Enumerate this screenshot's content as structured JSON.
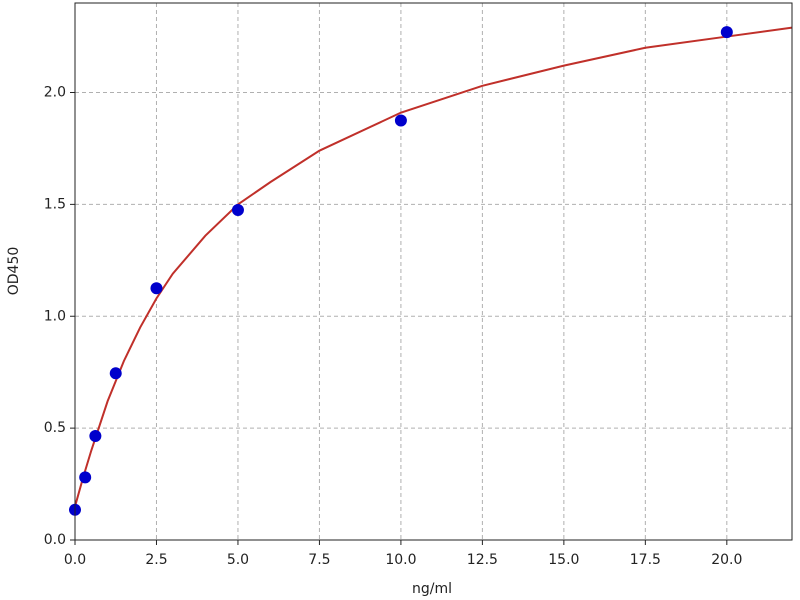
{
  "chart_data": {
    "type": "scatter",
    "x_label": "ng/ml",
    "y_label": "OD450",
    "xlim": [
      0,
      22
    ],
    "ylim": [
      0,
      2.4
    ],
    "xticks": [
      {
        "value": 0,
        "label": "0.0"
      },
      {
        "value": 2.5,
        "label": "2.5"
      },
      {
        "value": 5,
        "label": "5.0"
      },
      {
        "value": 7.5,
        "label": "7.5"
      },
      {
        "value": 10,
        "label": "10.0"
      },
      {
        "value": 12.5,
        "label": "12.5"
      },
      {
        "value": 15,
        "label": "15.0"
      },
      {
        "value": 17.5,
        "label": "17.5"
      },
      {
        "value": 20,
        "label": "20.0"
      }
    ],
    "yticks": [
      {
        "value": 0,
        "label": "0.0"
      },
      {
        "value": 0.5,
        "label": "0.5"
      },
      {
        "value": 1,
        "label": "1.0"
      },
      {
        "value": 1.5,
        "label": "1.5"
      },
      {
        "value": 2,
        "label": "2.0"
      }
    ],
    "grid": true,
    "points": {
      "color": "#0000cc",
      "x": [
        0,
        0.3125,
        0.625,
        1.25,
        2.5,
        5,
        10,
        20
      ],
      "values": [
        0.135,
        0.28,
        0.465,
        0.745,
        1.125,
        1.475,
        1.875,
        2.27
      ]
    },
    "curve": {
      "color": "#c0302a",
      "x": [
        0,
        0.25,
        0.5,
        1,
        1.5,
        2,
        2.5,
        3,
        4,
        5,
        6,
        7.5,
        10,
        12.5,
        15,
        17.5,
        20,
        22
      ],
      "values": [
        0.15,
        0.28,
        0.4,
        0.62,
        0.8,
        0.95,
        1.08,
        1.19,
        1.36,
        1.5,
        1.6,
        1.74,
        1.91,
        2.03,
        2.12,
        2.2,
        2.25,
        2.29
      ]
    }
  }
}
